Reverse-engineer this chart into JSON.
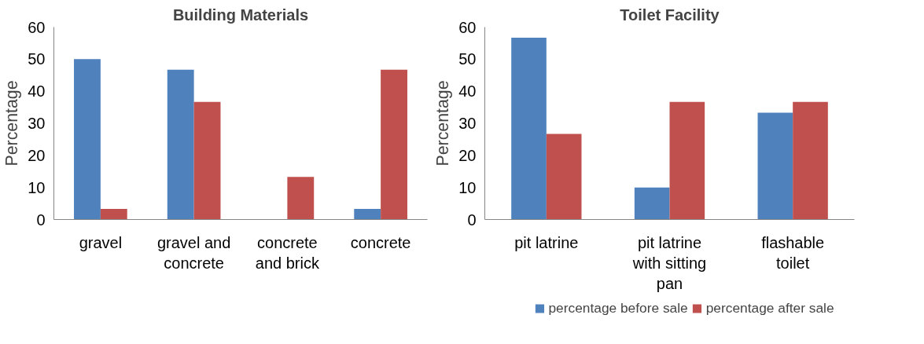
{
  "chart_data": [
    {
      "type": "bar",
      "title": "Building Materials",
      "ylabel": "Percentage",
      "categories": [
        "gravel",
        "gravel and concrete",
        "concrete and brick",
        "concrete"
      ],
      "series": [
        {
          "color": "#4f81bd",
          "values": [
            50,
            46.7,
            0,
            3.3
          ]
        },
        {
          "color": "#c0504d",
          "values": [
            3.3,
            36.7,
            13.3,
            46.7
          ]
        }
      ],
      "ylim": [
        0,
        60
      ],
      "yticks": [
        0,
        10,
        20,
        30,
        40,
        50,
        60
      ],
      "grid": false
    },
    {
      "type": "bar",
      "title": "Toilet Facility",
      "ylabel": "Percentage",
      "categories": [
        "pit latrine",
        "pit latrine with sitting pan",
        "flashable toilet"
      ],
      "series": [
        {
          "name": "percentage before sale",
          "color": "#4f81bd",
          "values": [
            56.7,
            10,
            33.3
          ]
        },
        {
          "name": "percentage after sale",
          "color": "#c0504d",
          "values": [
            26.7,
            36.7,
            36.7
          ]
        }
      ],
      "ylim": [
        0,
        60
      ],
      "yticks": [
        0,
        10,
        20,
        30,
        40,
        50,
        60
      ],
      "grid": false,
      "legend": "bottom"
    }
  ]
}
